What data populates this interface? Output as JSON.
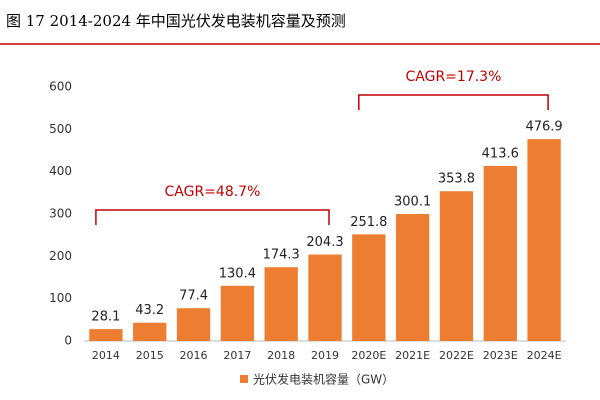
{
  "chart_data": {
    "type": "bar",
    "title": "图 17 2014-2024 年中国光伏发电装机容量及预测",
    "categories": [
      "2014",
      "2015",
      "2016",
      "2017",
      "2018",
      "2019",
      "2020E",
      "2021E",
      "2022E",
      "2023E",
      "2024E"
    ],
    "series": [
      {
        "name": "光伏发电装机容量（GW）",
        "color": "#ED7D31",
        "values": [
          28.1,
          43.2,
          77.4,
          130.4,
          174.3,
          204.3,
          251.8,
          300.1,
          353.8,
          413.6,
          476.9
        ]
      }
    ],
    "ylim": [
      0,
      600
    ],
    "yticks": [
      0,
      100,
      200,
      300,
      400,
      500,
      600
    ],
    "grid": false,
    "annotations": [
      "CAGR=48.7%",
      "CAGR=17.3%"
    ],
    "legend": "bottom"
  }
}
